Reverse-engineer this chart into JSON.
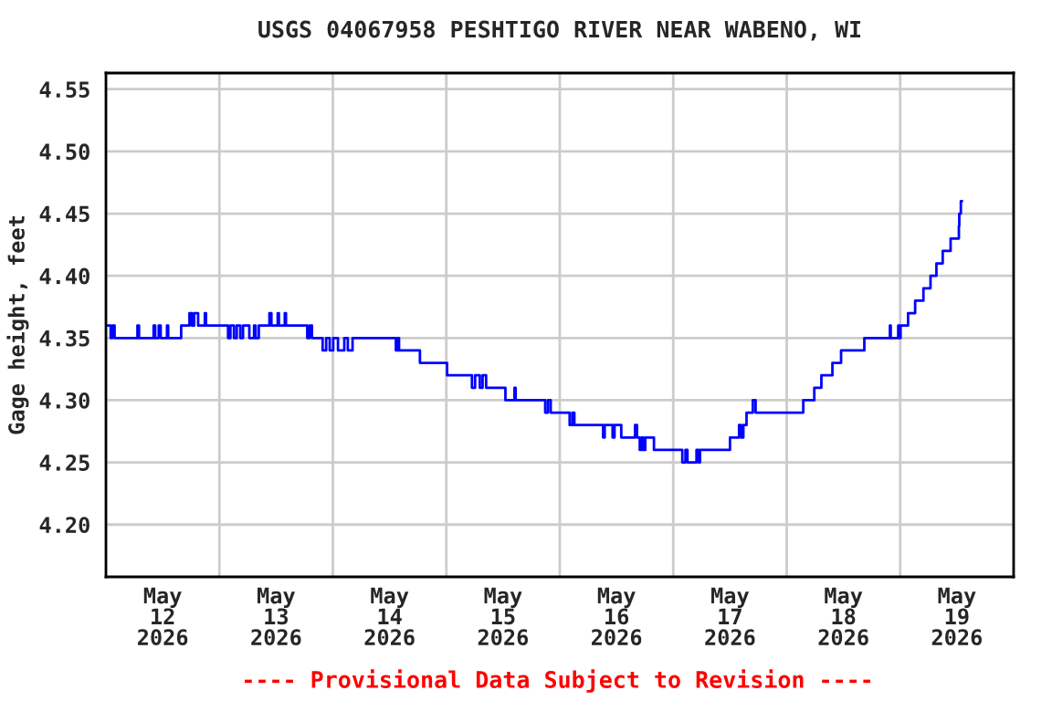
{
  "chart_data": {
    "type": "step",
    "title": "USGS 04067958 PESHTIGO RIVER NEAR WABENO, WI",
    "ylabel": "Gage height, feet",
    "annotations": [
      "---- Provisional Data Subject to Revision ----"
    ],
    "x": [
      "2026-05-12T00:00",
      "2026-05-12T01:00",
      "2026-05-12T01:25",
      "2026-05-12T01:50",
      "2026-05-12T06:40",
      "2026-05-12T07:00",
      "2026-05-12T10:05",
      "2026-05-12T10:25",
      "2026-05-12T11:10",
      "2026-05-12T11:35",
      "2026-05-12T12:55",
      "2026-05-12T13:10",
      "2026-05-12T15:55",
      "2026-05-12T17:40",
      "2026-05-12T18:10",
      "2026-05-12T18:40",
      "2026-05-12T19:30",
      "2026-05-12T20:55",
      "2026-05-12T21:10",
      "2026-05-13T01:50",
      "2026-05-13T02:20",
      "2026-05-13T03:05",
      "2026-05-13T03:40",
      "2026-05-13T04:25",
      "2026-05-13T05:00",
      "2026-05-13T06:20",
      "2026-05-13T07:20",
      "2026-05-13T07:40",
      "2026-05-13T08:20",
      "2026-05-13T10:35",
      "2026-05-13T11:00",
      "2026-05-13T12:20",
      "2026-05-13T12:35",
      "2026-05-13T13:50",
      "2026-05-13T14:05",
      "2026-05-13T18:35",
      "2026-05-13T19:05",
      "2026-05-13T19:35",
      "2026-05-13T21:50",
      "2026-05-13T22:35",
      "2026-05-13T23:20",
      "2026-05-14T00:05",
      "2026-05-14T01:05",
      "2026-05-14T02:25",
      "2026-05-14T03:10",
      "2026-05-14T04:10",
      "2026-05-14T13:20",
      "2026-05-14T13:40",
      "2026-05-14T14:00",
      "2026-05-14T18:25",
      "2026-05-15T00:10",
      "2026-05-15T05:25",
      "2026-05-15T06:05",
      "2026-05-15T07:05",
      "2026-05-15T07:40",
      "2026-05-15T08:25",
      "2026-05-15T12:30",
      "2026-05-15T14:25",
      "2026-05-15T14:40",
      "2026-05-15T20:55",
      "2026-05-15T21:30",
      "2026-05-15T22:05",
      "2026-05-16T02:05",
      "2026-05-16T02:40",
      "2026-05-16T03:05",
      "2026-05-16T09:10",
      "2026-05-16T09:30",
      "2026-05-16T11:10",
      "2026-05-16T11:35",
      "2026-05-16T13:00",
      "2026-05-16T15:55",
      "2026-05-16T16:20",
      "2026-05-16T16:55",
      "2026-05-16T17:20",
      "2026-05-16T17:40",
      "2026-05-16T18:05",
      "2026-05-16T19:55",
      "2026-05-17T01:55",
      "2026-05-17T02:35",
      "2026-05-17T03:00",
      "2026-05-17T04:55",
      "2026-05-17T05:20",
      "2026-05-17T05:40",
      "2026-05-17T12:00",
      "2026-05-17T13:55",
      "2026-05-17T14:20",
      "2026-05-17T14:50",
      "2026-05-17T15:30",
      "2026-05-17T16:50",
      "2026-05-17T17:25",
      "2026-05-18T03:30",
      "2026-05-18T05:50",
      "2026-05-18T07:20",
      "2026-05-18T09:40",
      "2026-05-18T11:30",
      "2026-05-18T16:25",
      "2026-05-18T21:50",
      "2026-05-18T22:00",
      "2026-05-18T23:35",
      "2026-05-18T23:50",
      "2026-05-19T00:05",
      "2026-05-19T01:40",
      "2026-05-19T03:10",
      "2026-05-19T04:55",
      "2026-05-19T06:25",
      "2026-05-19T07:40",
      "2026-05-19T09:00",
      "2026-05-19T10:40",
      "2026-05-19T12:25",
      "2026-05-19T12:30",
      "2026-05-19T12:50",
      "2026-05-19T13:05"
    ],
    "series": [
      {
        "color": "#0000ff",
        "values": [
          4.36,
          4.35,
          4.36,
          4.35,
          4.36,
          4.35,
          4.36,
          4.35,
          4.36,
          4.35,
          4.36,
          4.35,
          4.36,
          4.37,
          4.36,
          4.37,
          4.36,
          4.37,
          4.36,
          4.35,
          4.36,
          4.35,
          4.36,
          4.35,
          4.36,
          4.35,
          4.36,
          4.35,
          4.36,
          4.37,
          4.36,
          4.37,
          4.36,
          4.37,
          4.36,
          4.35,
          4.36,
          4.35,
          4.34,
          4.35,
          4.34,
          4.35,
          4.34,
          4.35,
          4.34,
          4.35,
          4.34,
          4.35,
          4.34,
          4.33,
          4.32,
          4.31,
          4.32,
          4.31,
          4.32,
          4.31,
          4.3,
          4.31,
          4.3,
          4.29,
          4.3,
          4.29,
          4.28,
          4.29,
          4.28,
          4.27,
          4.28,
          4.27,
          4.28,
          4.27,
          4.28,
          4.27,
          4.26,
          4.27,
          4.26,
          4.27,
          4.26,
          4.25,
          4.26,
          4.25,
          4.26,
          4.25,
          4.26,
          4.27,
          4.28,
          4.27,
          4.28,
          4.29,
          4.3,
          4.29,
          4.3,
          4.31,
          4.32,
          4.33,
          4.34,
          4.35,
          4.36,
          4.35,
          4.36,
          4.35,
          4.36,
          4.37,
          4.38,
          4.39,
          4.4,
          4.41,
          4.42,
          4.43,
          4.44,
          4.45,
          4.46,
          4.46
        ]
      }
    ],
    "xlim": [
      "2026-05-12T00:00",
      "2026-05-20T00:00"
    ],
    "xticks": [
      {
        "value": "2026-05-12T00:00",
        "label": null
      },
      {
        "value": "2026-05-12T12:00",
        "label": "May\n12\n2026"
      },
      {
        "value": "2026-05-13T00:00",
        "label": null
      },
      {
        "value": "2026-05-13T12:00",
        "label": "May\n13\n2026"
      },
      {
        "value": "2026-05-14T00:00",
        "label": null
      },
      {
        "value": "2026-05-14T12:00",
        "label": "May\n14\n2026"
      },
      {
        "value": "2026-05-15T00:00",
        "label": null
      },
      {
        "value": "2026-05-15T12:00",
        "label": "May\n15\n2026"
      },
      {
        "value": "2026-05-16T00:00",
        "label": null
      },
      {
        "value": "2026-05-16T12:00",
        "label": "May\n16\n2026"
      },
      {
        "value": "2026-05-17T00:00",
        "label": null
      },
      {
        "value": "2026-05-17T12:00",
        "label": "May\n17\n2026"
      },
      {
        "value": "2026-05-18T00:00",
        "label": null
      },
      {
        "value": "2026-05-18T12:00",
        "label": "May\n18\n2026"
      },
      {
        "value": "2026-05-19T00:00",
        "label": null
      },
      {
        "value": "2026-05-19T12:00",
        "label": "May\n19\n2026"
      },
      {
        "value": "2026-05-20T00:00",
        "label": null
      }
    ],
    "ylim": [
      4.158,
      4.563
    ],
    "yticks": [
      {
        "value": 4.2,
        "label": "4.20"
      },
      {
        "value": 4.25,
        "label": "4.25"
      },
      {
        "value": 4.3,
        "label": "4.30"
      },
      {
        "value": 4.35,
        "label": "4.35"
      },
      {
        "value": 4.4,
        "label": "4.40"
      },
      {
        "value": 4.45,
        "label": "4.45"
      },
      {
        "value": 4.5,
        "label": "4.50"
      },
      {
        "value": 4.55,
        "label": "4.55"
      }
    ],
    "grid": true
  }
}
